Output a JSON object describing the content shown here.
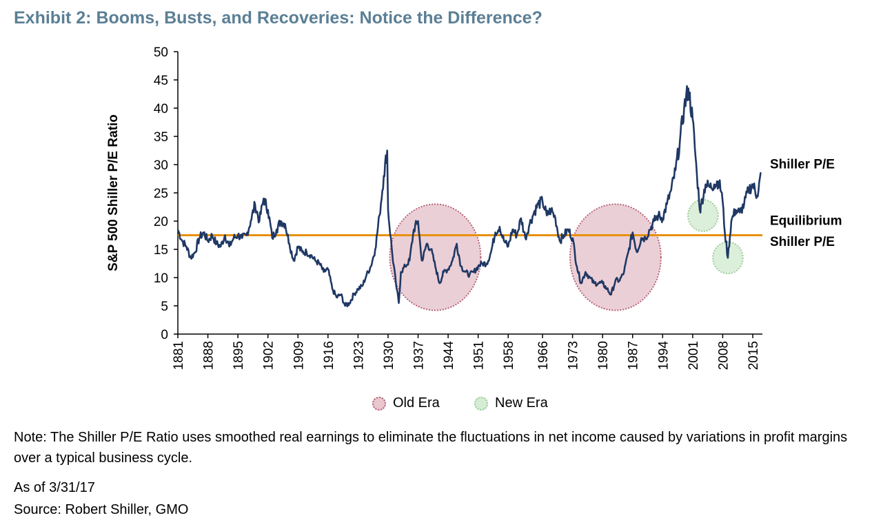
{
  "title": "Exhibit 2: Booms, Busts, and Recoveries: Notice the Difference?",
  "chart_data": {
    "type": "line",
    "ylabel": "S&P 500 Shiller P/E Ratio",
    "ylim": [
      0,
      50
    ],
    "yticks": [
      0,
      5,
      10,
      15,
      20,
      25,
      30,
      35,
      40,
      45,
      50
    ],
    "xlim": [
      1881,
      2017.25
    ],
    "xticks": [
      1881,
      1888,
      1895,
      1902,
      1909,
      1916,
      1923,
      1930,
      1937,
      1944,
      1951,
      1958,
      1966,
      1973,
      1980,
      1987,
      1994,
      2001,
      2008,
      2015
    ],
    "grid": false,
    "series": [
      {
        "name": "Shiller P/E",
        "color": "#1f3864",
        "points": [
          [
            1881,
            18.5
          ],
          [
            1882,
            16.5
          ],
          [
            1883,
            15.5
          ],
          [
            1884,
            13.5
          ],
          [
            1885,
            14.5
          ],
          [
            1886,
            17
          ],
          [
            1887,
            18
          ],
          [
            1888,
            16.5
          ],
          [
            1889,
            17.5
          ],
          [
            1890,
            16
          ],
          [
            1891,
            15.5
          ],
          [
            1892,
            17.5
          ],
          [
            1893,
            15.5
          ],
          [
            1894,
            17
          ],
          [
            1895,
            17.5
          ],
          [
            1896,
            17
          ],
          [
            1897,
            17.5
          ],
          [
            1898,
            20
          ],
          [
            1899,
            23
          ],
          [
            1900,
            20
          ],
          [
            1901,
            24
          ],
          [
            1902,
            22
          ],
          [
            1903,
            17
          ],
          [
            1904,
            18.5
          ],
          [
            1905,
            20
          ],
          [
            1906,
            19.5
          ],
          [
            1907,
            16
          ],
          [
            1908,
            13
          ],
          [
            1909,
            15.5
          ],
          [
            1910,
            14.5
          ],
          [
            1911,
            14.5
          ],
          [
            1912,
            14
          ],
          [
            1913,
            13
          ],
          [
            1914,
            12.5
          ],
          [
            1915,
            11
          ],
          [
            1916,
            11.5
          ],
          [
            1917,
            8
          ],
          [
            1918,
            6.5
          ],
          [
            1919,
            7
          ],
          [
            1920,
            5
          ],
          [
            1921,
            5.5
          ],
          [
            1922,
            7
          ],
          [
            1923,
            8
          ],
          [
            1924,
            8.5
          ],
          [
            1925,
            10.5
          ],
          [
            1926,
            12
          ],
          [
            1927,
            15
          ],
          [
            1928,
            21
          ],
          [
            1929,
            28
          ],
          [
            1929.8,
            32.5
          ],
          [
            1930,
            22
          ],
          [
            1931,
            14
          ],
          [
            1932,
            8
          ],
          [
            1932.5,
            5.5
          ],
          [
            1933,
            11
          ],
          [
            1934,
            12
          ],
          [
            1935,
            13
          ],
          [
            1936,
            18.5
          ],
          [
            1937,
            20
          ],
          [
            1937.7,
            14
          ],
          [
            1938,
            13
          ],
          [
            1939,
            16
          ],
          [
            1940,
            15
          ],
          [
            1941,
            12
          ],
          [
            1942,
            9
          ],
          [
            1943,
            11
          ],
          [
            1944,
            11.5
          ],
          [
            1945,
            13
          ],
          [
            1946,
            16
          ],
          [
            1947,
            12
          ],
          [
            1948,
            11
          ],
          [
            1949,
            10.5
          ],
          [
            1950,
            11
          ],
          [
            1951,
            12
          ],
          [
            1952,
            12.5
          ],
          [
            1953,
            12.5
          ],
          [
            1954,
            14.5
          ],
          [
            1955,
            18
          ],
          [
            1956,
            19
          ],
          [
            1957,
            16.5
          ],
          [
            1958,
            15.5
          ],
          [
            1959,
            18.5
          ],
          [
            1960,
            17.5
          ],
          [
            1961,
            20.5
          ],
          [
            1962,
            17
          ],
          [
            1963,
            19.5
          ],
          [
            1964,
            21.5
          ],
          [
            1965,
            23
          ],
          [
            1966,
            23.5
          ],
          [
            1967,
            21
          ],
          [
            1968,
            22
          ],
          [
            1969,
            20.5
          ],
          [
            1970,
            16.5
          ],
          [
            1971,
            17.5
          ],
          [
            1972,
            18.5
          ],
          [
            1973,
            17
          ],
          [
            1974,
            12
          ],
          [
            1975,
            9
          ],
          [
            1976,
            11
          ],
          [
            1977,
            10
          ],
          [
            1978,
            9
          ],
          [
            1979,
            9
          ],
          [
            1980,
            9
          ],
          [
            1981,
            8
          ],
          [
            1982,
            7
          ],
          [
            1983,
            9.5
          ],
          [
            1984,
            9.5
          ],
          [
            1985,
            11
          ],
          [
            1986,
            14.5
          ],
          [
            1987,
            18
          ],
          [
            1988,
            14.5
          ],
          [
            1989,
            17
          ],
          [
            1990,
            17
          ],
          [
            1991,
            18.5
          ],
          [
            1992,
            20
          ],
          [
            1993,
            21
          ],
          [
            1994,
            20.5
          ],
          [
            1995,
            23
          ],
          [
            1996,
            25.5
          ],
          [
            1997,
            29
          ],
          [
            1998,
            34
          ],
          [
            1999,
            40
          ],
          [
            2000,
            43.5
          ],
          [
            2001,
            38
          ],
          [
            2002,
            28
          ],
          [
            2002.8,
            21.5
          ],
          [
            2003,
            23
          ],
          [
            2004,
            26.5
          ],
          [
            2005,
            26
          ],
          [
            2006,
            26.5
          ],
          [
            2007,
            27
          ],
          [
            2007.8,
            25
          ],
          [
            2008.5,
            18
          ],
          [
            2009.2,
            13.5
          ],
          [
            2010,
            20
          ],
          [
            2011,
            22
          ],
          [
            2012,
            21.5
          ],
          [
            2013,
            23
          ],
          [
            2014,
            25.5
          ],
          [
            2015,
            26.5
          ],
          [
            2016,
            24.5
          ],
          [
            2017,
            28.5
          ]
        ]
      }
    ],
    "reference_line": {
      "value": 17.5,
      "label_line1": "Equilibrium",
      "label_line2": "Shiller P/E",
      "color": "#e8900c"
    },
    "series_label": "Shiller P/E",
    "highlights": [
      {
        "era": "Old Era",
        "x": 1941,
        "y": 13.6,
        "rx": 10.6,
        "ry": 9.4
      },
      {
        "era": "Old Era",
        "x": 1983,
        "y": 13.6,
        "rx": 10.6,
        "ry": 9.4
      },
      {
        "era": "New Era",
        "x": 2003.4,
        "y": 21,
        "rx": 3.5,
        "ry": 2.8
      },
      {
        "era": "New Era",
        "x": 2009.2,
        "y": 13.5,
        "rx": 3.5,
        "ry": 2.8
      }
    ]
  },
  "legend": [
    {
      "label": "Old Era",
      "fill": "#e8c7cf",
      "stroke": "#b56277"
    },
    {
      "label": "New Era",
      "fill": "#d6ecd4",
      "stroke": "#9ccc98"
    }
  ],
  "note": "Note: The Shiller P/E Ratio uses smoothed real earnings to eliminate the fluctuations in net income caused by variations in profit margins over a typical business cycle.",
  "as_of": "As of 3/31/17",
  "source": "Source: Robert Shiller, GMO"
}
